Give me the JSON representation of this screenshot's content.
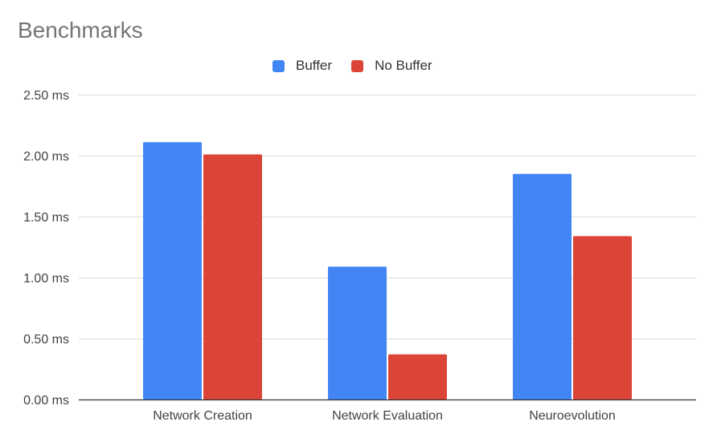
{
  "chart_data": {
    "type": "bar",
    "title": "Benchmarks",
    "categories": [
      "Network Creation",
      "Network Evaluation",
      "Neuroevolution"
    ],
    "series": [
      {
        "name": "Buffer",
        "values": [
          2.11,
          1.09,
          1.85
        ],
        "color": "#4285F4"
      },
      {
        "name": "No Buffer",
        "values": [
          2.01,
          0.37,
          1.34
        ],
        "color": "#DB4437"
      }
    ],
    "ylim": [
      0,
      2.5
    ],
    "yticks": [
      0,
      0.5,
      1.0,
      1.5,
      2.0,
      2.5
    ],
    "ytick_labels": [
      "0.00 ms",
      "0.50 ms",
      "1.00 ms",
      "1.50 ms",
      "2.00 ms",
      "2.50 ms"
    ],
    "xlabel": "",
    "ylabel": "",
    "grid": true,
    "legend_position": "top-center"
  },
  "colors": {
    "grid": "#d9d9d9",
    "axis": "#333333",
    "text": "#424242",
    "title": "#757575"
  }
}
